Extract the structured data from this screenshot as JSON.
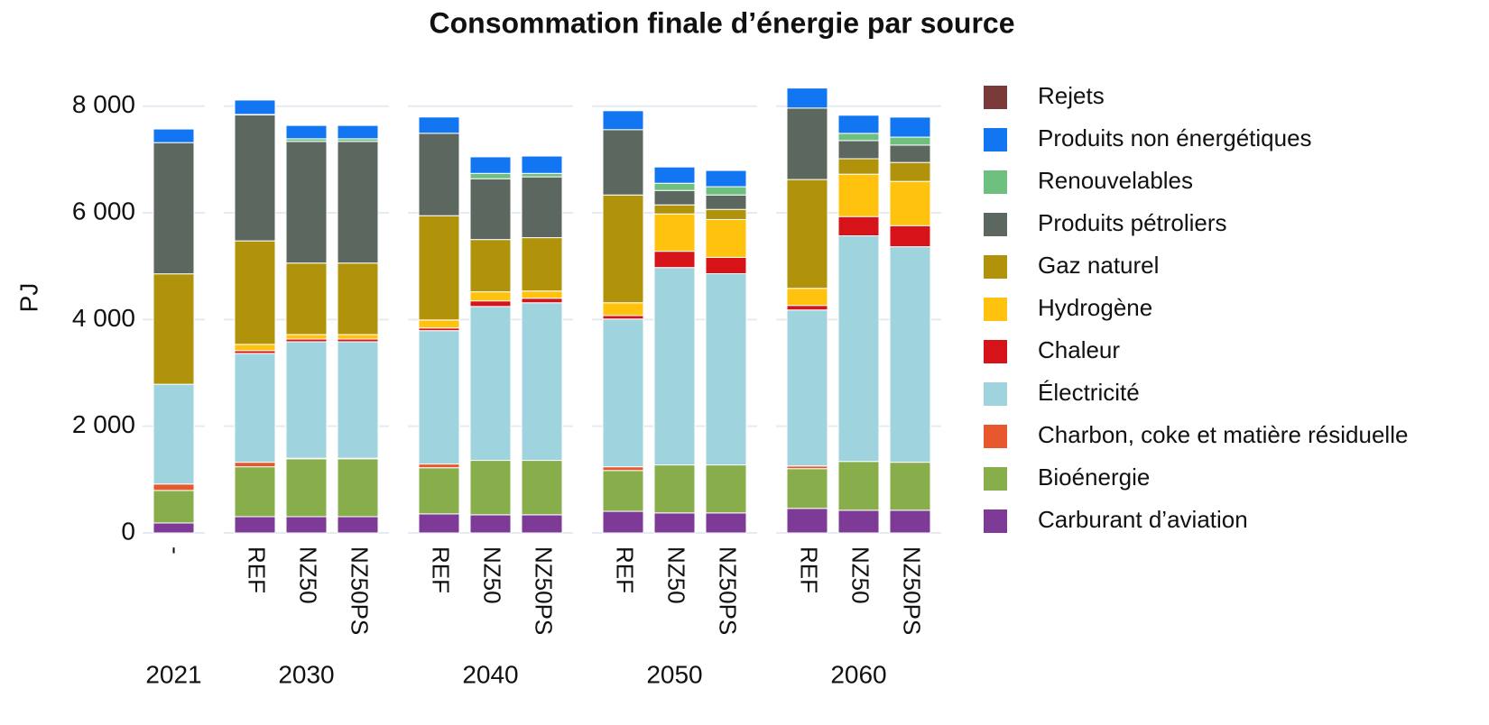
{
  "chart_data": {
    "type": "stacked_bar",
    "title": "Consommation finale d’énergie par source",
    "y_label": "PJ",
    "groups": [
      {
        "name": "2021",
        "categories": [
          "-"
        ]
      },
      {
        "name": "2030",
        "categories": [
          "REF",
          "NZ50",
          "NZ50PS"
        ]
      },
      {
        "name": "2040",
        "categories": [
          "REF",
          "NZ50",
          "NZ50PS"
        ]
      },
      {
        "name": "2050",
        "categories": [
          "REF",
          "NZ50",
          "NZ50PS"
        ]
      },
      {
        "name": "2060",
        "categories": [
          "REF",
          "NZ50",
          "NZ50PS"
        ]
      }
    ],
    "series": [
      {
        "name": "Carburant d’aviation",
        "color": "#7d3a96",
        "values": [
          187,
          305,
          305,
          305,
          357,
          340,
          340,
          405,
          375,
          375,
          460,
          425,
          425
        ]
      },
      {
        "name": "Bioénergie",
        "color": "#87ae4b",
        "values": [
          610,
          935,
          1085,
          1085,
          865,
          1020,
          1020,
          765,
          900,
          900,
          745,
          915,
          900
        ]
      },
      {
        "name": "Charbon, coke et matière résiduelle",
        "color": "#e8582f",
        "values": [
          120,
          85,
          10,
          10,
          70,
          0,
          0,
          70,
          0,
          0,
          50,
          0,
          0
        ]
      },
      {
        "name": "Électricité",
        "color": "#9fd4de",
        "values": [
          1870,
          2040,
          2184,
          2184,
          2500,
          2885,
          2955,
          2770,
          3700,
          3585,
          2925,
          4230,
          4040
        ]
      },
      {
        "name": "Chaleur",
        "color": "#d7131a",
        "values": [
          0,
          50,
          50,
          50,
          50,
          105,
          85,
          65,
          305,
          305,
          85,
          360,
          395
        ]
      },
      {
        "name": "Hydrogène",
        "color": "#ffc20f",
        "values": [
          0,
          120,
          85,
          85,
          150,
          170,
          135,
          240,
          700,
          710,
          320,
          795,
          830
        ]
      },
      {
        "name": "Gaz naturel",
        "color": "#b0920b",
        "values": [
          2070,
          1940,
          1340,
          1340,
          1955,
          980,
          1000,
          2020,
          170,
          190,
          2040,
          290,
          355
        ]
      },
      {
        "name": "Produits pétroliers",
        "color": "#5c675f",
        "values": [
          2460,
          2360,
          2280,
          2280,
          1545,
          1140,
          1140,
          1225,
          270,
          270,
          1340,
          340,
          325
        ]
      },
      {
        "name": "Renouvelables",
        "color": "#6dc07f",
        "values": [
          0,
          10,
          50,
          50,
          0,
          100,
          65,
          0,
          135,
          155,
          0,
          135,
          150
        ]
      },
      {
        "name": "Produits non énergétiques",
        "color": "#1276f2",
        "values": [
          255,
          270,
          250,
          250,
          305,
          310,
          325,
          355,
          305,
          305,
          375,
          340,
          375
        ]
      },
      {
        "name": "Rejets",
        "color": "#7b3a3a",
        "values": [
          0,
          0,
          0,
          0,
          0,
          0,
          0,
          0,
          0,
          0,
          0,
          0,
          0
        ]
      }
    ],
    "ylim": [
      0,
      8300
    ],
    "yticks": [
      0,
      {
        "value": 2000,
        "label": "2 000"
      },
      {
        "value": 4000,
        "label": "4 000"
      },
      {
        "value": 6000,
        "label": "6 000"
      },
      {
        "value": 8000,
        "label": "8 000"
      }
    ],
    "grid": true,
    "legend": "right"
  }
}
